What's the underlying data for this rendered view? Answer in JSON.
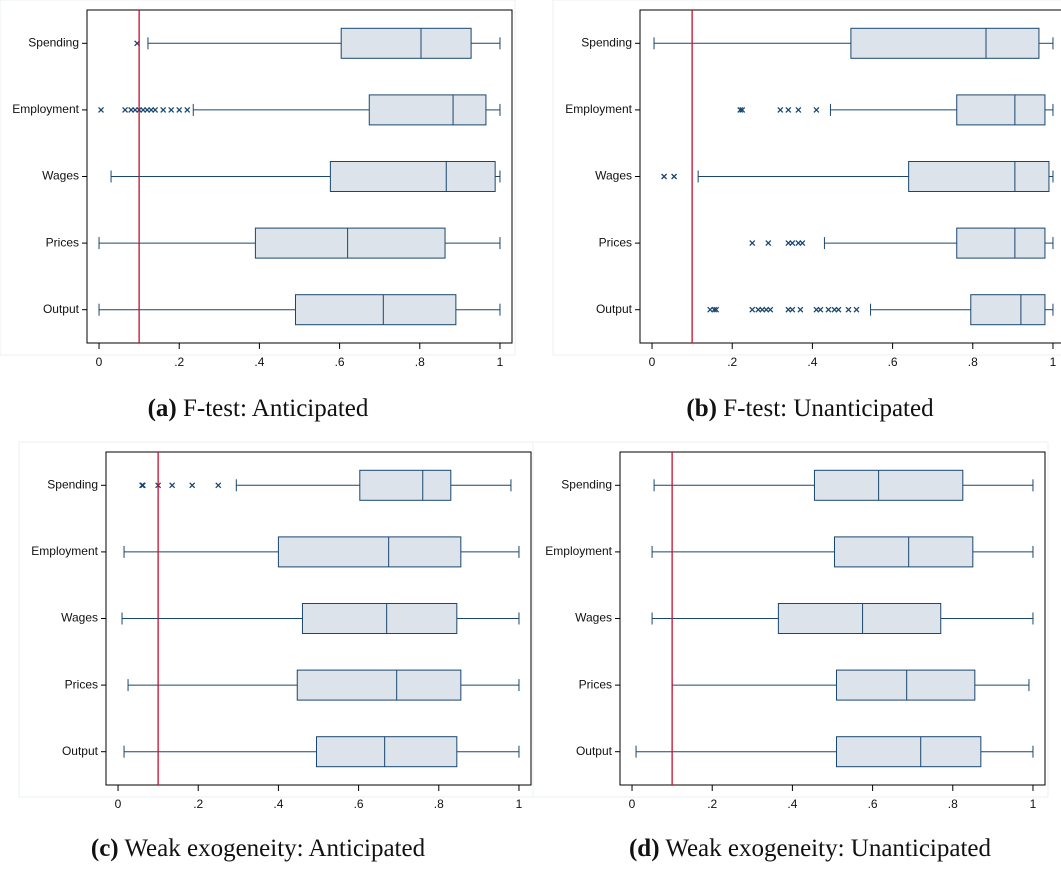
{
  "chart_data": [
    {
      "type": "box",
      "caption_label": "(a)",
      "caption": "F-test: Anticipated",
      "categories": [
        "Spending",
        "Employment",
        "Wages",
        "Prices",
        "Output"
      ],
      "boxes": [
        {
          "min": 0.122,
          "q1": 0.604,
          "median": 0.803,
          "q3": 0.928,
          "max": 1,
          "outliers": [
            0.095
          ]
        },
        {
          "min": 0.235,
          "q1": 0.674,
          "median": 0.883,
          "q3": 0.965,
          "max": 1,
          "outliers": [
            0.005,
            0.065,
            0.08,
            0.09,
            0.1,
            0.11,
            0.12,
            0.13,
            0.14,
            0.16,
            0.18,
            0.2,
            0.22
          ]
        },
        {
          "min": 0.03,
          "q1": 0.577,
          "median": 0.866,
          "q3": 0.988,
          "max": 1,
          "outliers": []
        },
        {
          "min": 0,
          "q1": 0.39,
          "median": 0.62,
          "q3": 0.863,
          "max": 1,
          "outliers": []
        },
        {
          "min": 0,
          "q1": 0.49,
          "median": 0.709,
          "q3": 0.89,
          "max": 1,
          "outliers": []
        }
      ],
      "xlim": [
        -0.03,
        1.03
      ],
      "xticks": [
        0,
        {
          "value": 0.2,
          "label": ".2"
        },
        {
          "value": 0.4,
          "label": ".4"
        },
        {
          "value": 0.6,
          "label": ".6"
        },
        {
          "value": 0.8,
          "label": ".8"
        },
        1
      ],
      "reference_line": 0.1,
      "reference_color": "#c8102e",
      "box_color": "#dde3ea",
      "line_color": "#1a476f"
    },
    {
      "type": "box",
      "caption_label": "(b)",
      "caption": "F-test: Unanticipated",
      "categories": [
        "Spending",
        "Employment",
        "Wages",
        "Prices",
        "Output"
      ],
      "boxes": [
        {
          "min": 0.005,
          "q1": 0.496,
          "median": 0.833,
          "q3": 0.965,
          "max": 1,
          "outliers": []
        },
        {
          "min": 0.445,
          "q1": 0.76,
          "median": 0.905,
          "q3": 0.98,
          "max": 1,
          "outliers": [
            0.22,
            0.225,
            0.32,
            0.34,
            0.365,
            0.41
          ]
        },
        {
          "min": 0.115,
          "q1": 0.64,
          "median": 0.905,
          "q3": 0.99,
          "max": 1,
          "outliers": [
            0.03,
            0.055
          ]
        },
        {
          "min": 0.43,
          "q1": 0.76,
          "median": 0.905,
          "q3": 0.98,
          "max": 1,
          "outliers": [
            0.25,
            0.29,
            0.34,
            0.35,
            0.365,
            0.375
          ]
        },
        {
          "min": 0.545,
          "q1": 0.795,
          "median": 0.92,
          "q3": 0.98,
          "max": 1,
          "outliers": [
            0.145,
            0.155,
            0.16,
            0.25,
            0.265,
            0.275,
            0.285,
            0.295,
            0.34,
            0.35,
            0.37,
            0.41,
            0.42,
            0.44,
            0.455,
            0.465,
            0.49,
            0.51
          ]
        }
      ],
      "xlim": [
        -0.03,
        1.03
      ],
      "xticks": [
        0,
        {
          "value": 0.2,
          "label": ".2"
        },
        {
          "value": 0.4,
          "label": ".4"
        },
        {
          "value": 0.6,
          "label": ".6"
        },
        {
          "value": 0.8,
          "label": ".8"
        },
        1
      ],
      "reference_line": 0.1,
      "reference_color": "#c8102e",
      "box_color": "#dde3ea",
      "line_color": "#1a476f"
    },
    {
      "type": "box",
      "caption_label": "(c)",
      "caption": "Weak exogeneity: Anticipated",
      "categories": [
        "Spending",
        "Employment",
        "Wages",
        "Prices",
        "Output"
      ],
      "boxes": [
        {
          "min": 0.295,
          "q1": 0.603,
          "median": 0.76,
          "q3": 0.83,
          "max": 0.98,
          "outliers": [
            0.06,
            0.062,
            0.1,
            0.135,
            0.185,
            0.25
          ]
        },
        {
          "min": 0.015,
          "q1": 0.4,
          "median": 0.675,
          "q3": 0.855,
          "max": 1,
          "outliers": []
        },
        {
          "min": 0.01,
          "q1": 0.46,
          "median": 0.67,
          "q3": 0.845,
          "max": 1,
          "outliers": []
        },
        {
          "min": 0.025,
          "q1": 0.447,
          "median": 0.695,
          "q3": 0.855,
          "max": 1,
          "outliers": []
        },
        {
          "min": 0.015,
          "q1": 0.495,
          "median": 0.665,
          "q3": 0.845,
          "max": 1,
          "outliers": []
        }
      ],
      "xlim": [
        -0.03,
        1.03
      ],
      "xticks": [
        0,
        {
          "value": 0.2,
          "label": ".2"
        },
        {
          "value": 0.4,
          "label": ".4"
        },
        {
          "value": 0.6,
          "label": ".6"
        },
        {
          "value": 0.8,
          "label": ".8"
        },
        1
      ],
      "reference_line": 0.1,
      "reference_color": "#c8102e",
      "box_color": "#dde3ea",
      "line_color": "#1a476f"
    },
    {
      "type": "box",
      "caption_label": "(d)",
      "caption": "Weak exogeneity: Unanticipated",
      "categories": [
        "Spending",
        "Employment",
        "Wages",
        "Prices",
        "Output"
      ],
      "boxes": [
        {
          "min": 0.055,
          "q1": 0.455,
          "median": 0.615,
          "q3": 0.825,
          "max": 1,
          "outliers": []
        },
        {
          "min": 0.05,
          "q1": 0.505,
          "median": 0.69,
          "q3": 0.85,
          "max": 1,
          "outliers": []
        },
        {
          "min": 0.05,
          "q1": 0.365,
          "median": 0.575,
          "q3": 0.77,
          "max": 1,
          "outliers": []
        },
        {
          "min": 0.1,
          "q1": 0.51,
          "median": 0.685,
          "q3": 0.855,
          "max": 0.99,
          "outliers": []
        },
        {
          "min": 0.01,
          "q1": 0.51,
          "median": 0.72,
          "q3": 0.87,
          "max": 1,
          "outliers": []
        }
      ],
      "xlim": [
        -0.03,
        1.03
      ],
      "xticks": [
        0,
        {
          "value": 0.2,
          "label": ".2"
        },
        {
          "value": 0.4,
          "label": ".4"
        },
        {
          "value": 0.6,
          "label": ".6"
        },
        {
          "value": 0.8,
          "label": ".8"
        },
        1
      ],
      "reference_line": 0.1,
      "reference_color": "#c8102e",
      "box_color": "#dde3ea",
      "line_color": "#1a476f"
    }
  ]
}
